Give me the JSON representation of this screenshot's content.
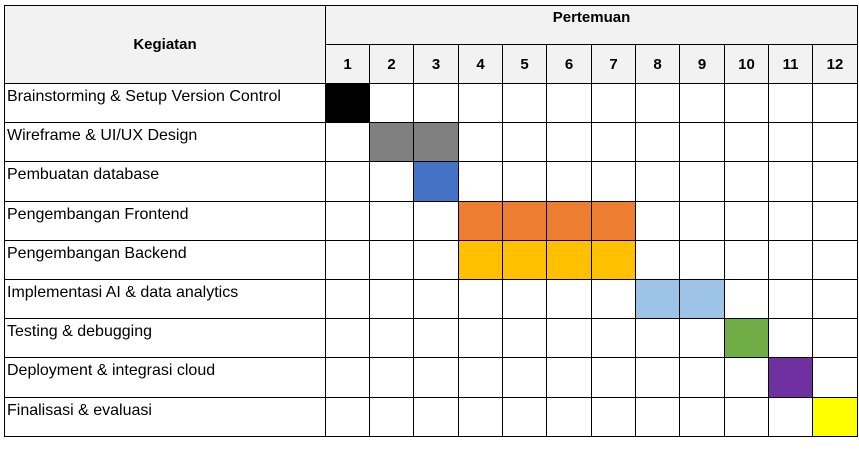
{
  "table": {
    "activity_header": "Kegiatan",
    "meetings_header": "Pertemuan",
    "meetings": [
      "1",
      "2",
      "3",
      "4",
      "5",
      "6",
      "7",
      "8",
      "9",
      "10",
      "11",
      "12"
    ],
    "rows": [
      {
        "activity": "Brainstorming & Setup Version Control",
        "start": 1,
        "end": 1,
        "color": "#000000"
      },
      {
        "activity": "Wireframe & UI/UX Design",
        "start": 2,
        "end": 3,
        "color": "#808080"
      },
      {
        "activity": "Pembuatan database",
        "start": 3,
        "end": 3,
        "color": "#4472c4"
      },
      {
        "activity": "Pengembangan Frontend",
        "start": 4,
        "end": 7,
        "color": "#ed7d31"
      },
      {
        "activity": "Pengembangan Backend",
        "start": 4,
        "end": 7,
        "color": "#ffc000"
      },
      {
        "activity": "Implementasi AI & data analytics",
        "start": 8,
        "end": 9,
        "color": "#9dc3e6"
      },
      {
        "activity": "Testing & debugging",
        "start": 10,
        "end": 10,
        "color": "#70ad47"
      },
      {
        "activity": "Deployment & integrasi cloud",
        "start": 11,
        "end": 11,
        "color": "#7030a0"
      },
      {
        "activity": "Finalisasi & evaluasi",
        "start": 12,
        "end": 12,
        "color": "#ffff00"
      }
    ]
  }
}
